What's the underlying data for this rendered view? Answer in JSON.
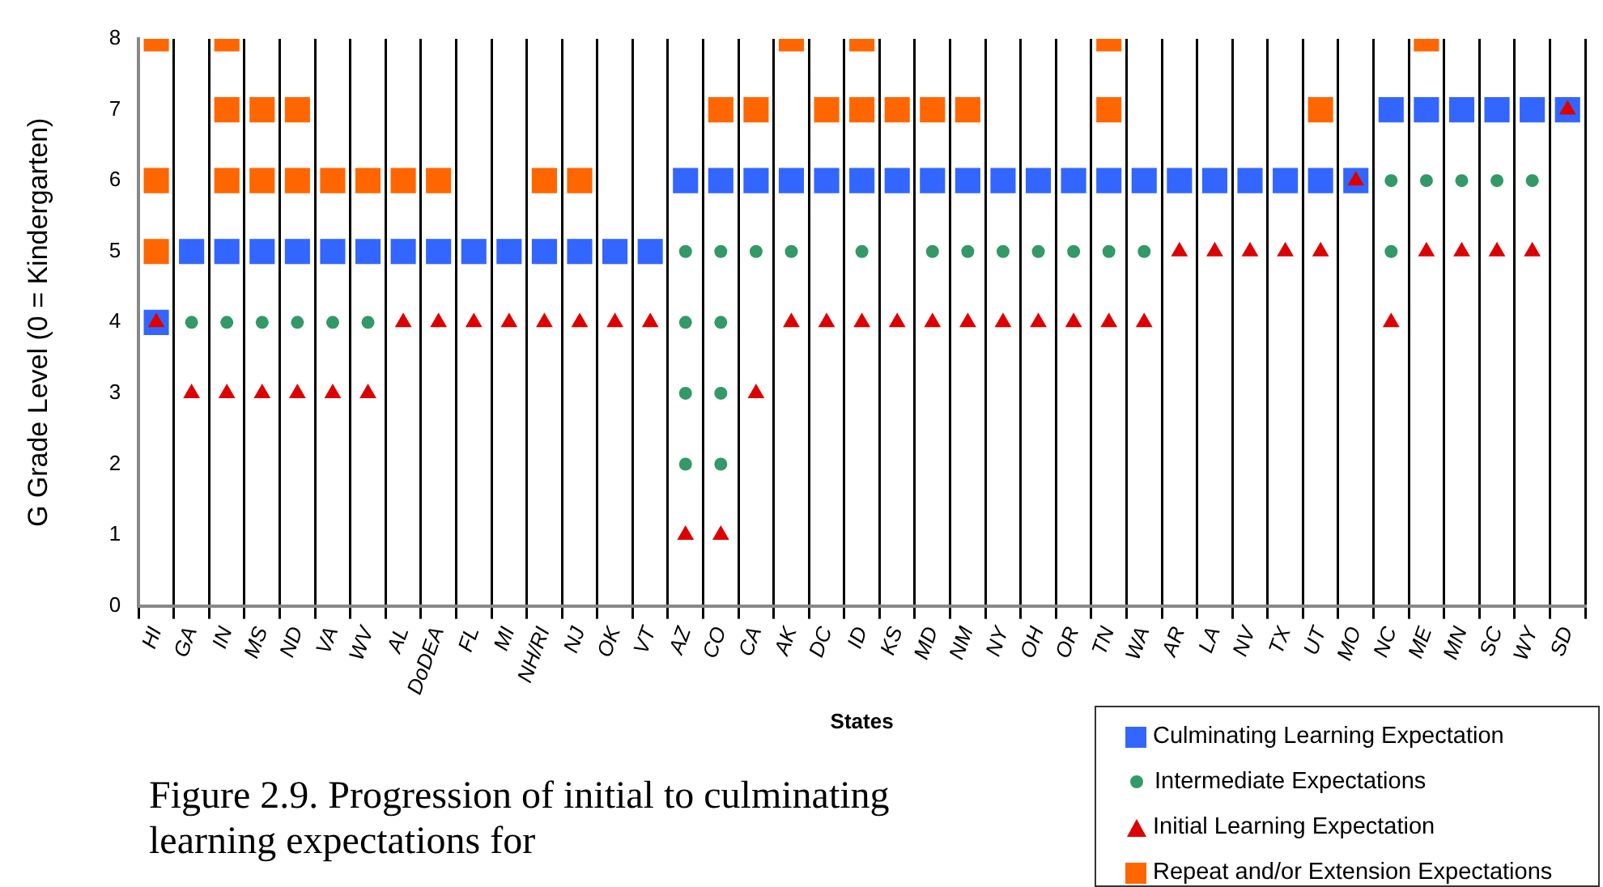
{
  "chart_data": {
    "type": "scatter",
    "xlabel": "States",
    "ylabel": "G Grade Level (0 = Kindergarten)",
    "categories": [
      "HI",
      "GA",
      "IN",
      "MS",
      "ND",
      "VA",
      "WV",
      "AL",
      "DoDEA",
      "FL",
      "MI",
      "NH/RI",
      "NJ",
      "OK",
      "VT",
      "AZ",
      "CO",
      "CA",
      "AK",
      "DC",
      "ID",
      "KS",
      "MD",
      "NM",
      "NY",
      "OH",
      "OR",
      "TN",
      "WA",
      "AR",
      "LA",
      "NV",
      "TX",
      "UT",
      "MO",
      "NC",
      "ME",
      "MN",
      "SC",
      "WY",
      "SD"
    ],
    "ylim": [
      0,
      8
    ],
    "yticks": [
      0,
      1,
      2,
      3,
      4,
      5,
      6,
      7,
      8
    ],
    "grid": "x",
    "legend": "bottom right",
    "annotations": [
      "Figure 2.9.  Progression of initial to culminating learning expectations for"
    ],
    "series": [
      {
        "name": "Culminating Learning Expectation",
        "color": "#3366ff",
        "marker": "square",
        "x": [
          "HI",
          "GA",
          "IN",
          "MS",
          "ND",
          "VA",
          "WV",
          "AL",
          "DoDEA",
          "FL",
          "MI",
          "NH/RI",
          "NJ",
          "OK",
          "VT",
          "AZ",
          "CO",
          "CA",
          "AK",
          "DC",
          "ID",
          "KS",
          "MD",
          "NM",
          "NY",
          "OH",
          "OR",
          "TN",
          "WA",
          "AR",
          "LA",
          "NV",
          "TX",
          "UT",
          "MO",
          "NC",
          "ME",
          "MN",
          "SC",
          "WY",
          "SD"
        ],
        "values": [
          4,
          5,
          5,
          5,
          5,
          5,
          5,
          5,
          5,
          5,
          5,
          5,
          5,
          5,
          5,
          6,
          6,
          6,
          6,
          6,
          6,
          6,
          6,
          6,
          6,
          6,
          6,
          6,
          6,
          6,
          6,
          6,
          6,
          6,
          6,
          7,
          7,
          7,
          7,
          7,
          7
        ]
      },
      {
        "name": "Intermediate Expectations",
        "color": "#339966",
        "marker": "circle",
        "x": [
          "GA",
          "IN",
          "MS",
          "ND",
          "VA",
          "WV",
          "AZ",
          "AZ",
          "AZ",
          "AZ",
          "CO",
          "CO",
          "CO",
          "CO",
          "CA",
          "AK",
          "ID",
          "MD",
          "NM",
          "NY",
          "OH",
          "OR",
          "TN",
          "WA",
          "NC",
          "NC",
          "ME",
          "MN",
          "SC",
          "WY"
        ],
        "values": [
          4,
          4,
          4,
          4,
          4,
          4,
          5,
          4,
          3,
          2,
          5,
          4,
          3,
          2,
          5,
          5,
          5,
          5,
          5,
          5,
          5,
          5,
          5,
          5,
          6,
          5,
          6,
          6,
          6,
          6
        ]
      },
      {
        "name": "Initial Learning Expectation",
        "color": "#dd0000",
        "marker": "triangle",
        "x": [
          "HI",
          "GA",
          "IN",
          "MS",
          "ND",
          "VA",
          "WV",
          "AL",
          "DoDEA",
          "FL",
          "MI",
          "NH/RI",
          "NJ",
          "OK",
          "VT",
          "AZ",
          "CO",
          "CA",
          "AK",
          "DC",
          "ID",
          "KS",
          "MD",
          "NM",
          "NY",
          "OH",
          "OR",
          "TN",
          "WA",
          "AR",
          "LA",
          "NV",
          "TX",
          "UT",
          "MO",
          "NC",
          "ME",
          "MN",
          "SC",
          "WY",
          "SD"
        ],
        "values": [
          4,
          3,
          3,
          3,
          3,
          3,
          3,
          4,
          4,
          4,
          4,
          4,
          4,
          4,
          4,
          1,
          1,
          3,
          4,
          4,
          4,
          4,
          4,
          4,
          4,
          4,
          4,
          4,
          4,
          5,
          5,
          5,
          5,
          5,
          6,
          4,
          5,
          5,
          5,
          5,
          7
        ]
      },
      {
        "name": "Repeat and/or Extension Expectations",
        "color": "#ff6600",
        "marker": "square",
        "x": [
          "HI",
          "HI",
          "HI",
          "IN",
          "IN",
          "IN",
          "MS",
          "MS",
          "ND",
          "ND",
          "VA",
          "WV",
          "AL",
          "DoDEA",
          "NH/RI",
          "NJ",
          "CO",
          "CA",
          "AK",
          "DC",
          "ID",
          "ID",
          "KS",
          "MD",
          "NM",
          "TN",
          "TN",
          "UT",
          "ME"
        ],
        "values": [
          5,
          6,
          8,
          6,
          7,
          8,
          6,
          7,
          6,
          7,
          6,
          6,
          6,
          6,
          6,
          6,
          7,
          7,
          8,
          7,
          7,
          8,
          7,
          7,
          7,
          7,
          8,
          7,
          8
        ]
      }
    ]
  }
}
